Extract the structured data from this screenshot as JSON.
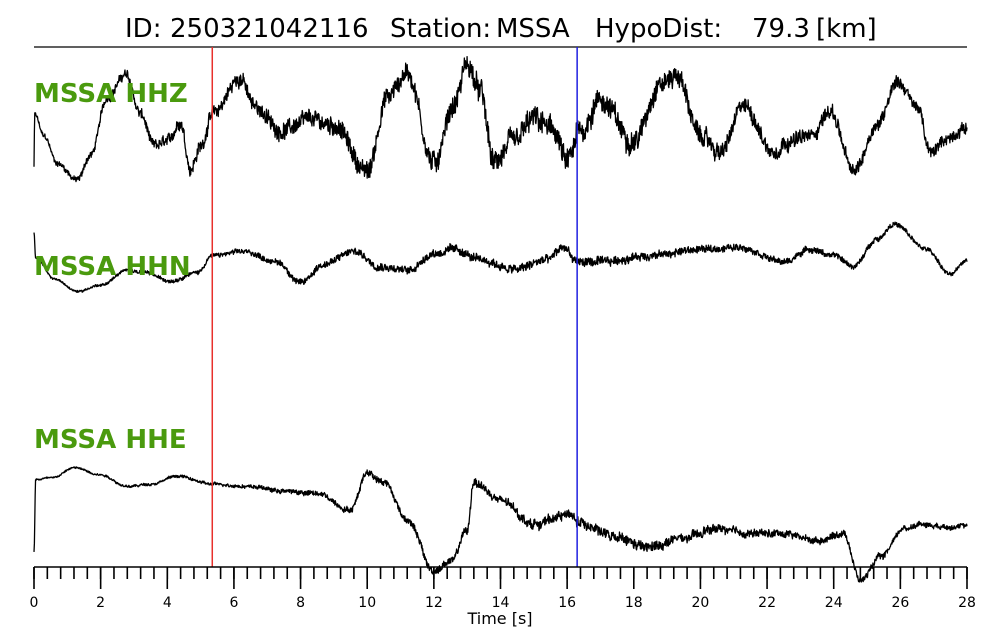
{
  "header": {
    "id_label": "ID:",
    "id_value": "250321042116",
    "station_label": "Station:",
    "station_value": "MSSA",
    "hypodist_label": "HypoDist:",
    "hypodist_value": "79.3",
    "hypodist_unit": "[km]"
  },
  "chart_data": {
    "type": "line",
    "xlabel": "Time [s]",
    "xlim": [
      0,
      28
    ],
    "major_ticks": [
      0,
      2,
      4,
      6,
      8,
      10,
      12,
      14,
      16,
      18,
      20,
      22,
      24,
      26,
      28
    ],
    "minor_tick_step": 0.4,
    "markers": [
      {
        "name": "P pick",
        "time": 5.35,
        "color": "#e8302c"
      },
      {
        "name": "S pick",
        "time": 16.3,
        "color": "#1f1fe0"
      }
    ],
    "label_color": "#4a9a0e",
    "series": [
      {
        "name": "MSSA HHZ",
        "points": [
          [
            0,
            -0.75
          ],
          [
            0.02,
            0.2
          ],
          [
            0.3,
            -0.2
          ],
          [
            0.7,
            -0.7
          ],
          [
            1.3,
            -1.0
          ],
          [
            1.7,
            -0.55
          ],
          [
            2.2,
            0.5
          ],
          [
            2.75,
            0.92
          ],
          [
            3.2,
            0.2
          ],
          [
            3.6,
            -0.38
          ],
          [
            4.0,
            -0.3
          ],
          [
            4.4,
            0.05
          ],
          [
            4.7,
            -0.8
          ],
          [
            5.0,
            -0.4
          ],
          [
            5.35,
            0.2
          ],
          [
            6.2,
            0.85
          ],
          [
            6.6,
            0.35
          ],
          [
            7.4,
            -0.1
          ],
          [
            8.3,
            0.1
          ],
          [
            9.0,
            0.0
          ],
          [
            10.0,
            -0.85
          ],
          [
            10.6,
            0.5
          ],
          [
            11.2,
            0.95
          ],
          [
            12.0,
            -0.7
          ],
          [
            12.6,
            0.35
          ],
          [
            13.0,
            1.1
          ],
          [
            13.4,
            0.6
          ],
          [
            13.8,
            -0.7
          ],
          [
            14.4,
            -0.3
          ],
          [
            15.0,
            0.1
          ],
          [
            15.6,
            -0.1
          ],
          [
            16.0,
            -0.7
          ],
          [
            16.4,
            -0.1
          ],
          [
            17.0,
            0.45
          ],
          [
            18.0,
            -0.3
          ],
          [
            18.8,
            0.75
          ],
          [
            19.3,
            0.9
          ],
          [
            20.0,
            -0.2
          ],
          [
            20.6,
            -0.5
          ],
          [
            21.3,
            0.35
          ],
          [
            22.2,
            -0.5
          ],
          [
            22.6,
            -0.3
          ],
          [
            23.3,
            -0.2
          ],
          [
            23.9,
            0.25
          ],
          [
            24.6,
            -0.85
          ],
          [
            25.3,
            0.0
          ],
          [
            25.9,
            0.8
          ],
          [
            26.5,
            0.35
          ],
          [
            26.9,
            -0.5
          ],
          [
            27.4,
            -0.25
          ],
          [
            28,
            -0.05
          ]
        ],
        "noise": [
          [
            0,
            0.03
          ],
          [
            5.35,
            0.1
          ],
          [
            10,
            0.14
          ],
          [
            16.3,
            0.18
          ],
          [
            21,
            0.12
          ],
          [
            28,
            0.08
          ]
        ]
      },
      {
        "name": "MSSA HHN",
        "points": [
          [
            0,
            0.7
          ],
          [
            0.05,
            0.1
          ],
          [
            0.6,
            -0.4
          ],
          [
            1.3,
            -0.7
          ],
          [
            2.0,
            -0.55
          ],
          [
            2.8,
            -0.2
          ],
          [
            3.3,
            -0.25
          ],
          [
            4.1,
            -0.45
          ],
          [
            4.9,
            -0.25
          ],
          [
            5.35,
            0.15
          ],
          [
            6.3,
            0.25
          ],
          [
            7.3,
            0.0
          ],
          [
            8.0,
            -0.5
          ],
          [
            8.7,
            -0.05
          ],
          [
            9.6,
            0.25
          ],
          [
            10.4,
            -0.1
          ],
          [
            11.2,
            -0.2
          ],
          [
            12.0,
            0.2
          ],
          [
            12.6,
            0.3
          ],
          [
            13.4,
            0.05
          ],
          [
            14.4,
            -0.18
          ],
          [
            15.4,
            0.05
          ],
          [
            15.9,
            0.35
          ],
          [
            16.3,
            0.0
          ],
          [
            17.0,
            0.0
          ],
          [
            18.5,
            0.15
          ],
          [
            20.0,
            0.3
          ],
          [
            21.2,
            0.35
          ],
          [
            22.5,
            0.0
          ],
          [
            23.3,
            0.3
          ],
          [
            24.0,
            0.15
          ],
          [
            24.6,
            -0.1
          ],
          [
            25.3,
            0.55
          ],
          [
            25.8,
            0.9
          ],
          [
            26.8,
            0.3
          ],
          [
            27.5,
            -0.3
          ],
          [
            28,
            0.05
          ]
        ],
        "noise": [
          [
            0,
            0.015
          ],
          [
            5.35,
            0.04
          ],
          [
            9,
            0.07
          ],
          [
            16.3,
            0.09
          ],
          [
            22,
            0.06
          ],
          [
            28,
            0.04
          ]
        ]
      },
      {
        "name": "MSSA HHE",
        "points": [
          [
            0,
            -0.9
          ],
          [
            0.05,
            0.65
          ],
          [
            0.6,
            0.7
          ],
          [
            1.2,
            0.9
          ],
          [
            2.0,
            0.75
          ],
          [
            2.8,
            0.5
          ],
          [
            3.5,
            0.55
          ],
          [
            4.3,
            0.72
          ],
          [
            5.35,
            0.55
          ],
          [
            6.5,
            0.5
          ],
          [
            7.5,
            0.4
          ],
          [
            8.5,
            0.35
          ],
          [
            9.5,
            0.0
          ],
          [
            10.0,
            0.8
          ],
          [
            10.5,
            0.6
          ],
          [
            11.2,
            -0.2
          ],
          [
            12.0,
            -1.3
          ],
          [
            12.5,
            -1.1
          ],
          [
            13.0,
            -0.45
          ],
          [
            13.2,
            0.6
          ],
          [
            14.0,
            0.2
          ],
          [
            15.0,
            -0.3
          ],
          [
            16.0,
            -0.1
          ],
          [
            16.5,
            -0.3
          ],
          [
            17.5,
            -0.6
          ],
          [
            18.4,
            -0.8
          ],
          [
            19.5,
            -0.6
          ],
          [
            20.5,
            -0.4
          ],
          [
            21.5,
            -0.5
          ],
          [
            22.5,
            -0.5
          ],
          [
            23.5,
            -0.65
          ],
          [
            24.3,
            -0.5
          ],
          [
            24.8,
            -1.5
          ],
          [
            25.4,
            -1.0
          ],
          [
            26.1,
            -0.4
          ],
          [
            26.6,
            -0.3
          ],
          [
            27.3,
            -0.35
          ],
          [
            28,
            -0.35
          ]
        ],
        "noise": [
          [
            0,
            0.015
          ],
          [
            5.35,
            0.025
          ],
          [
            9,
            0.05
          ],
          [
            13,
            0.07
          ],
          [
            18,
            0.09
          ],
          [
            23,
            0.06
          ],
          [
            28,
            0.04
          ]
        ]
      }
    ]
  }
}
